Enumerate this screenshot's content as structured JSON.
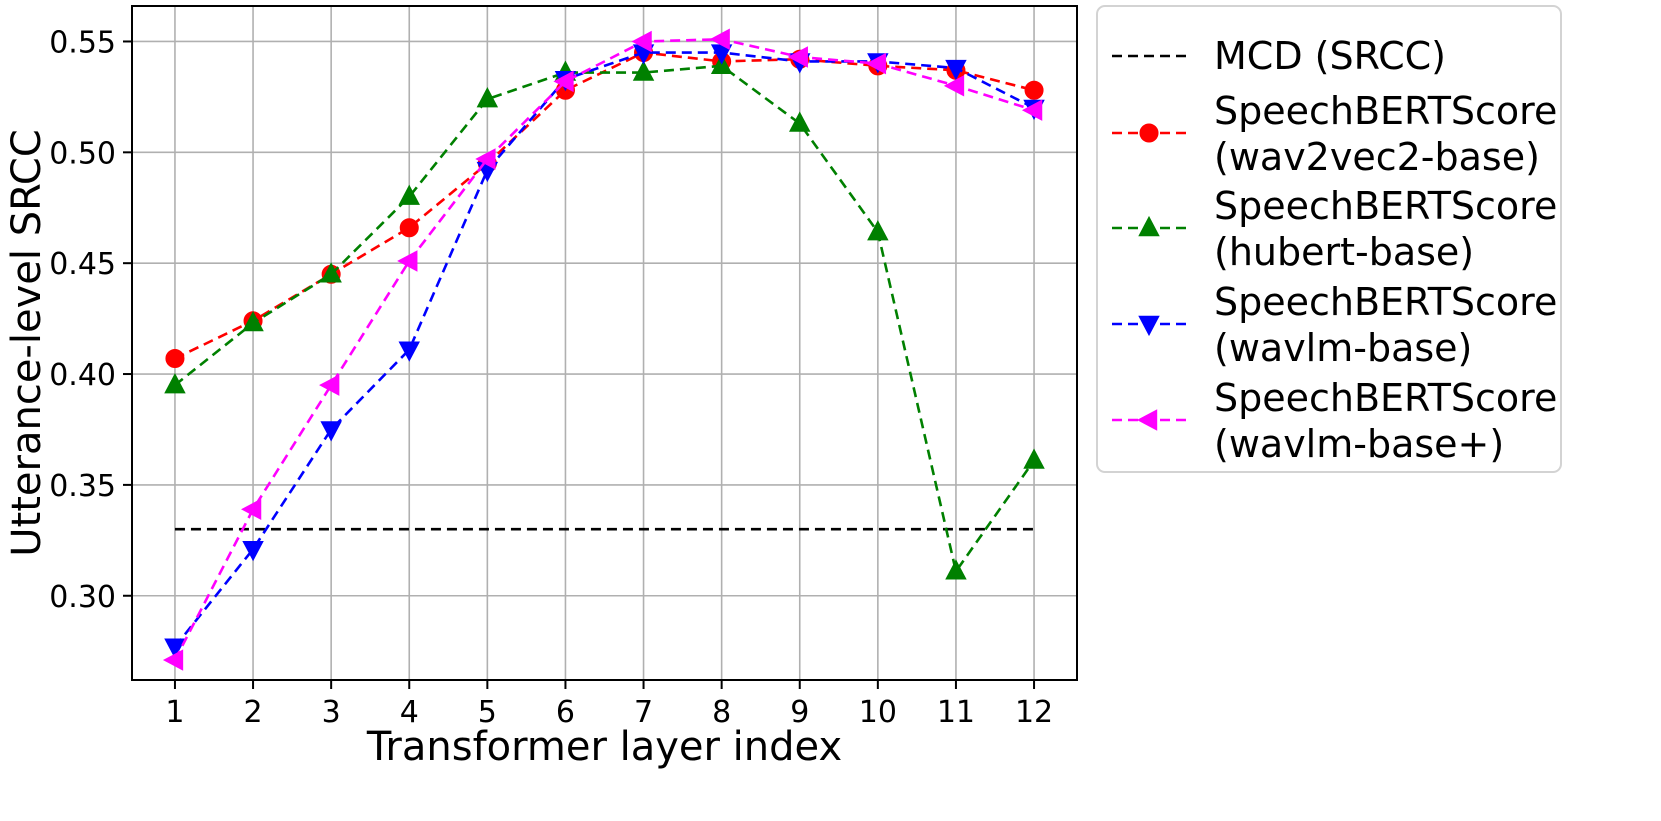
{
  "chart_data": {
    "type": "line",
    "xlabel": "Transformer layer index",
    "ylabel": "Utterance-level SRCC",
    "x": [
      1,
      2,
      3,
      4,
      5,
      6,
      7,
      8,
      9,
      10,
      11,
      12
    ],
    "xlim": [
      0.45,
      12.55
    ],
    "ylim": [
      0.262,
      0.566
    ],
    "yticks": [
      0.3,
      0.35,
      0.4,
      0.45,
      0.5,
      0.55
    ],
    "ytick_labels": [
      "0.30",
      "0.35",
      "0.40",
      "0.45",
      "0.50",
      "0.55"
    ],
    "xtick_labels": [
      "1",
      "2",
      "3",
      "4",
      "5",
      "6",
      "7",
      "8",
      "9",
      "10",
      "11",
      "12"
    ],
    "grid": true,
    "legend_position": "outside-right",
    "reference_line": {
      "name": "MCD (SRCC)",
      "value": 0.33,
      "color": "#000000"
    },
    "series": [
      {
        "name_line1": "SpeechBERTScore",
        "name_line2": "(wav2vec2-base)",
        "color": "#ff0000",
        "marker": "circle",
        "values": [
          0.407,
          0.424,
          0.445,
          0.466,
          0.495,
          0.528,
          0.545,
          0.541,
          0.542,
          0.539,
          0.537,
          0.528
        ]
      },
      {
        "name_line1": "SpeechBERTScore",
        "name_line2": "(hubert-base)",
        "color": "#008000",
        "marker": "triangle-up",
        "values": [
          0.395,
          0.423,
          0.445,
          0.48,
          0.524,
          0.536,
          0.536,
          0.539,
          0.513,
          0.464,
          0.311,
          0.361
        ]
      },
      {
        "name_line1": "SpeechBERTScore",
        "name_line2": "(wavlm-base)",
        "color": "#0000ff",
        "marker": "triangle-down",
        "values": [
          0.277,
          0.321,
          0.375,
          0.411,
          0.492,
          0.533,
          0.545,
          0.545,
          0.541,
          0.541,
          0.538,
          0.52
        ]
      },
      {
        "name_line1": "SpeechBERTScore",
        "name_line2": "(wavlm-base+)",
        "color": "#ff00ff",
        "marker": "triangle-left",
        "values": [
          0.271,
          0.339,
          0.395,
          0.451,
          0.497,
          0.532,
          0.55,
          0.551,
          0.543,
          0.54,
          0.53,
          0.519
        ]
      }
    ]
  }
}
